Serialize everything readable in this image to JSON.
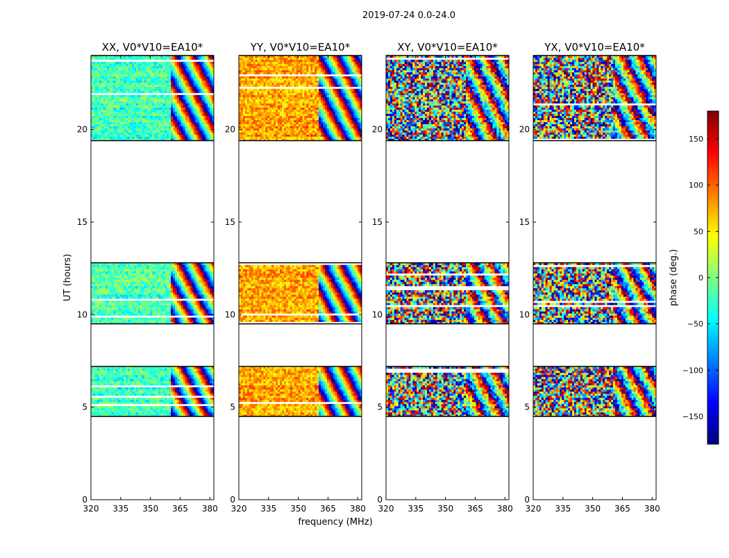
{
  "chart_data": {
    "type": "heatmap",
    "suptitle": "2019-07-24 0.0-24.0",
    "xlabel": "frequency (MHz)",
    "ylabel": "UT (hours)",
    "xlim": [
      320,
      382
    ],
    "ylim": [
      0,
      24
    ],
    "xticks": [
      320,
      335,
      350,
      365,
      380
    ],
    "yticks": [
      0,
      5,
      10,
      15,
      20
    ],
    "colorbar": {
      "label": "phase (deg.)",
      "range": [
        -180,
        180
      ],
      "ticks": [
        150,
        100,
        50,
        0,
        -50,
        -100,
        -150
      ],
      "tick_labels": [
        "150",
        "100",
        "50",
        "0",
        "−50",
        "−100",
        "−150"
      ],
      "stops": [
        "#00007f",
        "#0000ff",
        "#007fff",
        "#00ffff",
        "#7fff7f",
        "#ffff00",
        "#ff7f00",
        "#ff0000",
        "#7f0000"
      ]
    },
    "observed_time_ranges_hours": [
      [
        4.5,
        7.2
      ],
      [
        9.5,
        12.8
      ],
      [
        19.4,
        24.0
      ]
    ],
    "panels": [
      {
        "title": "XX, V0*V10=EA10*",
        "base_phase_deg": -20,
        "noise": "low",
        "fringe_start_mhz": 360
      },
      {
        "title": "YY, V0*V10=EA10*",
        "base_phase_deg": 75,
        "noise": "low",
        "fringe_start_mhz": 360
      },
      {
        "title": "XY, V0*V10=EA10*",
        "base_phase_deg": 0,
        "noise": "high",
        "fringe_start_mhz": 360
      },
      {
        "title": "YX, V0*V10=EA10*",
        "base_phase_deg": -120,
        "noise": "high",
        "fringe_start_mhz": 360
      }
    ]
  }
}
